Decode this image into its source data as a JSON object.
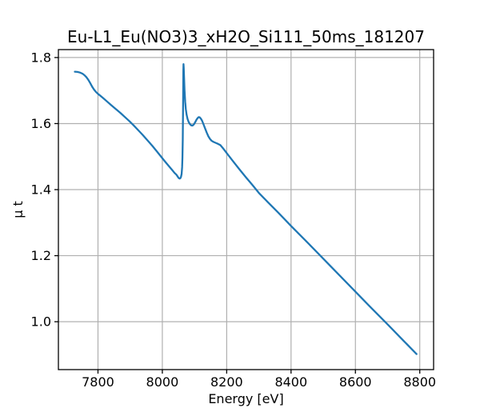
{
  "chart_data": {
    "type": "line",
    "title": "Eu-L1_Eu(NO3)3_xH2O_Si111_50ms_181207",
    "xlabel": "Energy [eV]",
    "ylabel": "μ t",
    "xlim": [
      7677,
      8843
    ],
    "ylim": [
      0.855,
      1.824
    ],
    "x_ticks": [
      7800,
      8000,
      8200,
      8400,
      8600,
      8800
    ],
    "x_tick_labels": [
      "7800",
      "8000",
      "8200",
      "8400",
      "8600",
      "8800"
    ],
    "y_ticks": [
      1.0,
      1.2,
      1.4,
      1.6,
      1.8
    ],
    "y_tick_labels": [
      "1.0",
      "1.2",
      "1.4",
      "1.6",
      "1.8"
    ],
    "grid": true,
    "legend": "none",
    "colors": {
      "line": "#1f77b4",
      "grid": "#b0b0b0",
      "spine": "#000000",
      "background": "#ffffff"
    },
    "series": [
      {
        "name": "mu_t_absorption_spectrum",
        "points": [
          [
            7728,
            1.757
          ],
          [
            7736,
            1.7565
          ],
          [
            7744,
            1.7545
          ],
          [
            7752,
            1.751
          ],
          [
            7758,
            1.7465
          ],
          [
            7764,
            1.7405
          ],
          [
            7770,
            1.7325
          ],
          [
            7776,
            1.7225
          ],
          [
            7782,
            1.7115
          ],
          [
            7788,
            1.7025
          ],
          [
            7794,
            1.6955
          ],
          [
            7800,
            1.69
          ],
          [
            7814,
            1.679
          ],
          [
            7828,
            1.667
          ],
          [
            7842,
            1.655
          ],
          [
            7856,
            1.6435
          ],
          [
            7870,
            1.632
          ],
          [
            7884,
            1.6195
          ],
          [
            7898,
            1.607
          ],
          [
            7912,
            1.5935
          ],
          [
            7926,
            1.579
          ],
          [
            7940,
            1.5645
          ],
          [
            7954,
            1.549
          ],
          [
            7968,
            1.5335
          ],
          [
            7982,
            1.517
          ],
          [
            7996,
            1.5
          ],
          [
            8008,
            1.4855
          ],
          [
            8020,
            1.4715
          ],
          [
            8030,
            1.46
          ],
          [
            8038,
            1.4505
          ],
          [
            8044,
            1.445
          ],
          [
            8048,
            1.439
          ],
          [
            8051,
            1.435
          ],
          [
            8054,
            1.4335
          ],
          [
            8056,
            1.4345
          ],
          [
            8058,
            1.4385
          ],
          [
            8060,
            1.448
          ],
          [
            8061.5,
            1.468
          ],
          [
            8062.5,
            1.497
          ],
          [
            8063.5,
            1.551
          ],
          [
            8064.5,
            1.656
          ],
          [
            8065.3,
            1.762
          ],
          [
            8065.8,
            1.78
          ],
          [
            8066.5,
            1.769
          ],
          [
            8067.5,
            1.742
          ],
          [
            8069,
            1.701
          ],
          [
            8071,
            1.666
          ],
          [
            8073,
            1.6435
          ],
          [
            8075.5,
            1.6265
          ],
          [
            8078.5,
            1.6135
          ],
          [
            8082,
            1.6045
          ],
          [
            8086,
            1.598
          ],
          [
            8090,
            1.5945
          ],
          [
            8094,
            1.594
          ],
          [
            8098,
            1.5975
          ],
          [
            8102,
            1.604
          ],
          [
            8106,
            1.6115
          ],
          [
            8110,
            1.617
          ],
          [
            8113,
            1.6195
          ],
          [
            8116,
            1.619
          ],
          [
            8120,
            1.6145
          ],
          [
            8124,
            1.6075
          ],
          [
            8128,
            1.5975
          ],
          [
            8133,
            1.585
          ],
          [
            8138,
            1.5725
          ],
          [
            8143,
            1.5615
          ],
          [
            8148,
            1.5535
          ],
          [
            8153,
            1.548
          ],
          [
            8159,
            1.5445
          ],
          [
            8166,
            1.5415
          ],
          [
            8173,
            1.5385
          ],
          [
            8180,
            1.535
          ],
          [
            8190,
            1.5235
          ],
          [
            8205,
            1.5045
          ],
          [
            8220,
            1.4855
          ],
          [
            8240,
            1.461
          ],
          [
            8260,
            1.437
          ],
          [
            8280,
            1.414
          ],
          [
            8300,
            1.39
          ],
          [
            8330,
            1.36
          ],
          [
            8360,
            1.3305
          ],
          [
            8400,
            1.29
          ],
          [
            8450,
            1.241
          ],
          [
            8500,
            1.191
          ],
          [
            8550,
            1.141
          ],
          [
            8600,
            1.091
          ],
          [
            8650,
            1.041
          ],
          [
            8700,
            0.992
          ],
          [
            8745,
            0.947
          ],
          [
            8790,
            0.902
          ]
        ]
      }
    ]
  }
}
